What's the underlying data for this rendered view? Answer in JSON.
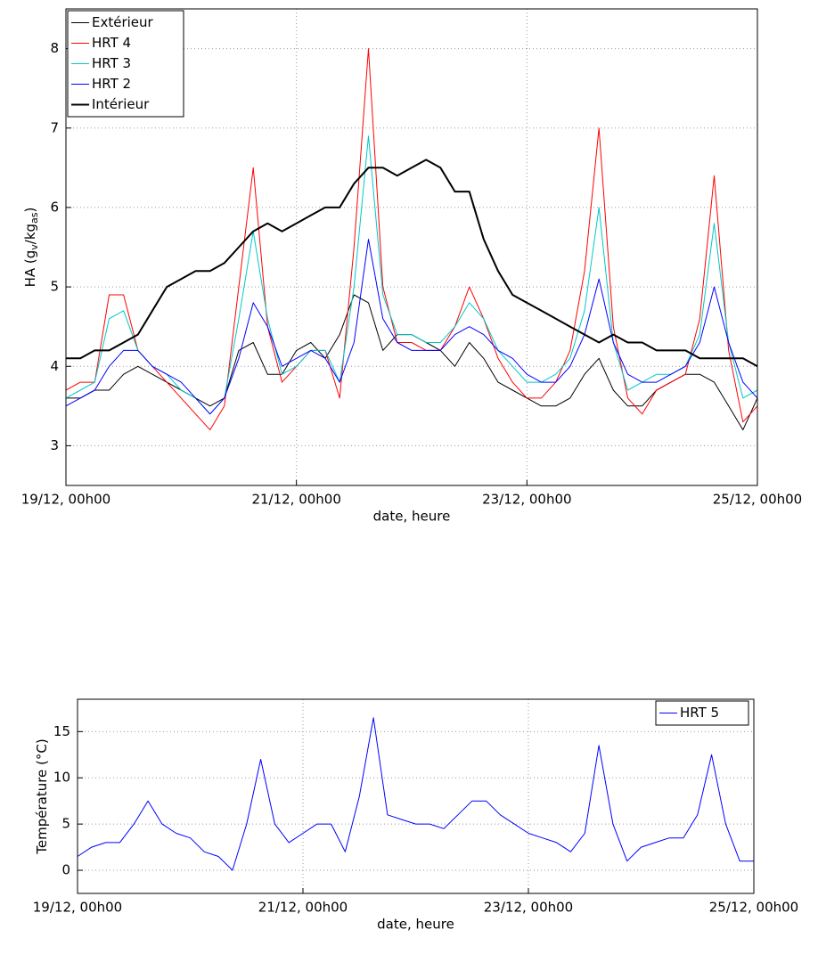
{
  "chart_data": [
    {
      "type": "line",
      "ylabel": [
        "HA (g",
        "v",
        "/kg",
        "as",
        ")"
      ],
      "xlabel": "date, heure",
      "x": [
        "19/12, 00h00",
        "19/12, 03h00",
        "19/12, 06h00",
        "19/12, 09h00",
        "19/12, 12h00",
        "19/12, 15h00",
        "19/12, 18h00",
        "19/12, 21h00",
        "20/12, 00h00",
        "20/12, 03h00",
        "20/12, 06h00",
        "20/12, 09h00",
        "20/12, 12h00",
        "20/12, 15h00",
        "20/12, 18h00",
        "20/12, 21h00",
        "21/12, 00h00",
        "21/12, 03h00",
        "21/12, 06h00",
        "21/12, 09h00",
        "21/12, 12h00",
        "21/12, 15h00",
        "21/12, 18h00",
        "21/12, 21h00",
        "22/12, 00h00",
        "22/12, 03h00",
        "22/12, 06h00",
        "22/12, 09h00",
        "22/12, 12h00",
        "22/12, 15h00",
        "22/12, 18h00",
        "22/12, 21h00",
        "23/12, 00h00",
        "23/12, 03h00",
        "23/12, 06h00",
        "23/12, 09h00",
        "23/12, 12h00",
        "23/12, 15h00",
        "23/12, 18h00",
        "23/12, 21h00",
        "24/12, 00h00",
        "24/12, 03h00",
        "24/12, 06h00",
        "24/12, 09h00",
        "24/12, 12h00",
        "24/12, 15h00",
        "24/12, 18h00",
        "24/12, 21h00",
        "25/12, 00h00"
      ],
      "xticks": [
        "19/12, 00h00",
        "21/12, 00h00",
        "23/12, 00h00",
        "25/12, 00h00"
      ],
      "ylim": [
        2.5,
        8.5
      ],
      "yticks": [
        3,
        4,
        5,
        6,
        7,
        8
      ],
      "grid": true,
      "legend": "top-left",
      "series": [
        {
          "name": "Extérieur",
          "color": "#000000",
          "values": [
            3.6,
            3.6,
            3.7,
            3.7,
            3.9,
            4.0,
            3.9,
            3.8,
            3.7,
            3.6,
            3.5,
            3.6,
            4.2,
            4.3,
            3.9,
            3.9,
            4.2,
            4.3,
            4.1,
            4.4,
            4.9,
            4.8,
            4.2,
            4.4,
            4.4,
            4.3,
            4.2,
            4.0,
            4.3,
            4.1,
            3.8,
            3.7,
            3.6,
            3.5,
            3.5,
            3.6,
            3.9,
            4.1,
            3.7,
            3.5,
            3.5,
            3.7,
            3.8,
            3.9,
            3.9,
            3.8,
            3.5,
            3.2,
            3.6
          ]
        },
        {
          "name": "HRT 4",
          "color": "#ff0000",
          "values": [
            3.7,
            3.8,
            3.8,
            4.9,
            4.9,
            4.2,
            4.0,
            3.8,
            3.6,
            3.4,
            3.2,
            3.5,
            5.0,
            6.5,
            4.5,
            3.8,
            4.0,
            4.2,
            4.2,
            3.6,
            5.5,
            8.0,
            5.0,
            4.3,
            4.3,
            4.2,
            4.2,
            4.5,
            5.0,
            4.6,
            4.1,
            3.8,
            3.6,
            3.6,
            3.8,
            4.2,
            5.2,
            7.0,
            4.5,
            3.6,
            3.4,
            3.7,
            3.8,
            3.9,
            4.6,
            6.4,
            4.2,
            3.3,
            3.5
          ]
        },
        {
          "name": "HRT 3",
          "color": "#00c8c8",
          "values": [
            3.6,
            3.7,
            3.8,
            4.6,
            4.7,
            4.2,
            4.0,
            3.9,
            3.7,
            3.6,
            3.4,
            3.6,
            4.6,
            5.7,
            4.6,
            3.9,
            4.0,
            4.2,
            4.2,
            3.8,
            5.0,
            6.9,
            4.9,
            4.4,
            4.4,
            4.3,
            4.3,
            4.5,
            4.8,
            4.6,
            4.2,
            4.0,
            3.8,
            3.8,
            3.9,
            4.1,
            4.7,
            6.0,
            4.3,
            3.7,
            3.8,
            3.9,
            3.9,
            4.0,
            4.4,
            5.8,
            4.3,
            3.6,
            3.7
          ]
        },
        {
          "name": "HRT 2",
          "color": "#0000ff",
          "values": [
            3.5,
            3.6,
            3.7,
            4.0,
            4.2,
            4.2,
            4.0,
            3.9,
            3.8,
            3.6,
            3.4,
            3.6,
            4.1,
            4.8,
            4.5,
            4.0,
            4.1,
            4.2,
            4.1,
            3.8,
            4.3,
            5.6,
            4.6,
            4.3,
            4.2,
            4.2,
            4.2,
            4.4,
            4.5,
            4.4,
            4.2,
            4.1,
            3.9,
            3.8,
            3.8,
            4.0,
            4.4,
            5.1,
            4.3,
            3.9,
            3.8,
            3.8,
            3.9,
            4.0,
            4.3,
            5.0,
            4.3,
            3.8,
            3.6
          ]
        },
        {
          "name": "Intérieur",
          "color": "#000000",
          "width": 2,
          "values": [
            4.1,
            4.1,
            4.2,
            4.2,
            4.3,
            4.4,
            4.7,
            5.0,
            5.1,
            5.2,
            5.2,
            5.3,
            5.5,
            5.7,
            5.8,
            5.7,
            5.8,
            5.9,
            6.0,
            6.0,
            6.3,
            6.5,
            6.5,
            6.4,
            6.5,
            6.6,
            6.5,
            6.2,
            6.2,
            5.6,
            5.2,
            4.9,
            4.8,
            4.7,
            4.6,
            4.5,
            4.4,
            4.3,
            4.4,
            4.3,
            4.3,
            4.2,
            4.2,
            4.2,
            4.1,
            4.1,
            4.1,
            4.1,
            4.0
          ]
        }
      ]
    },
    {
      "type": "line",
      "ylabel": [
        "Température (°C)"
      ],
      "xlabel": "date, heure",
      "x": [
        "19/12, 00h00",
        "19/12, 03h00",
        "19/12, 06h00",
        "19/12, 09h00",
        "19/12, 12h00",
        "19/12, 15h00",
        "19/12, 18h00",
        "19/12, 21h00",
        "20/12, 00h00",
        "20/12, 03h00",
        "20/12, 06h00",
        "20/12, 09h00",
        "20/12, 12h00",
        "20/12, 15h00",
        "20/12, 18h00",
        "20/12, 21h00",
        "21/12, 00h00",
        "21/12, 03h00",
        "21/12, 06h00",
        "21/12, 09h00",
        "21/12, 12h00",
        "21/12, 15h00",
        "21/12, 18h00",
        "21/12, 21h00",
        "22/12, 00h00",
        "22/12, 03h00",
        "22/12, 06h00",
        "22/12, 09h00",
        "22/12, 12h00",
        "22/12, 15h00",
        "22/12, 18h00",
        "22/12, 21h00",
        "23/12, 00h00",
        "23/12, 03h00",
        "23/12, 06h00",
        "23/12, 09h00",
        "23/12, 12h00",
        "23/12, 15h00",
        "23/12, 18h00",
        "23/12, 21h00",
        "24/12, 00h00",
        "24/12, 03h00",
        "24/12, 06h00",
        "24/12, 09h00",
        "24/12, 12h00",
        "24/12, 15h00",
        "24/12, 18h00",
        "24/12, 21h00",
        "25/12, 00h00"
      ],
      "xticks": [
        "19/12, 00h00",
        "21/12, 00h00",
        "23/12, 00h00",
        "25/12, 00h00"
      ],
      "ylim": [
        -2.5,
        18.5
      ],
      "yticks": [
        0,
        5,
        10,
        15
      ],
      "grid": true,
      "legend": "top-right",
      "series": [
        {
          "name": "HRT 5",
          "color": "#0000ff",
          "values": [
            1.5,
            2.5,
            3,
            3,
            5,
            7.5,
            5,
            4,
            3.5,
            2,
            1.5,
            0,
            5,
            12,
            5,
            3,
            4,
            5,
            5,
            2,
            8,
            16.5,
            6,
            5.5,
            5,
            5,
            4.5,
            6,
            7.5,
            7.5,
            6,
            5,
            4,
            3.5,
            3,
            2,
            4,
            13.5,
            5,
            1,
            2.5,
            3,
            3.5,
            3.5,
            6,
            12.5,
            5,
            1,
            1
          ]
        }
      ]
    }
  ]
}
